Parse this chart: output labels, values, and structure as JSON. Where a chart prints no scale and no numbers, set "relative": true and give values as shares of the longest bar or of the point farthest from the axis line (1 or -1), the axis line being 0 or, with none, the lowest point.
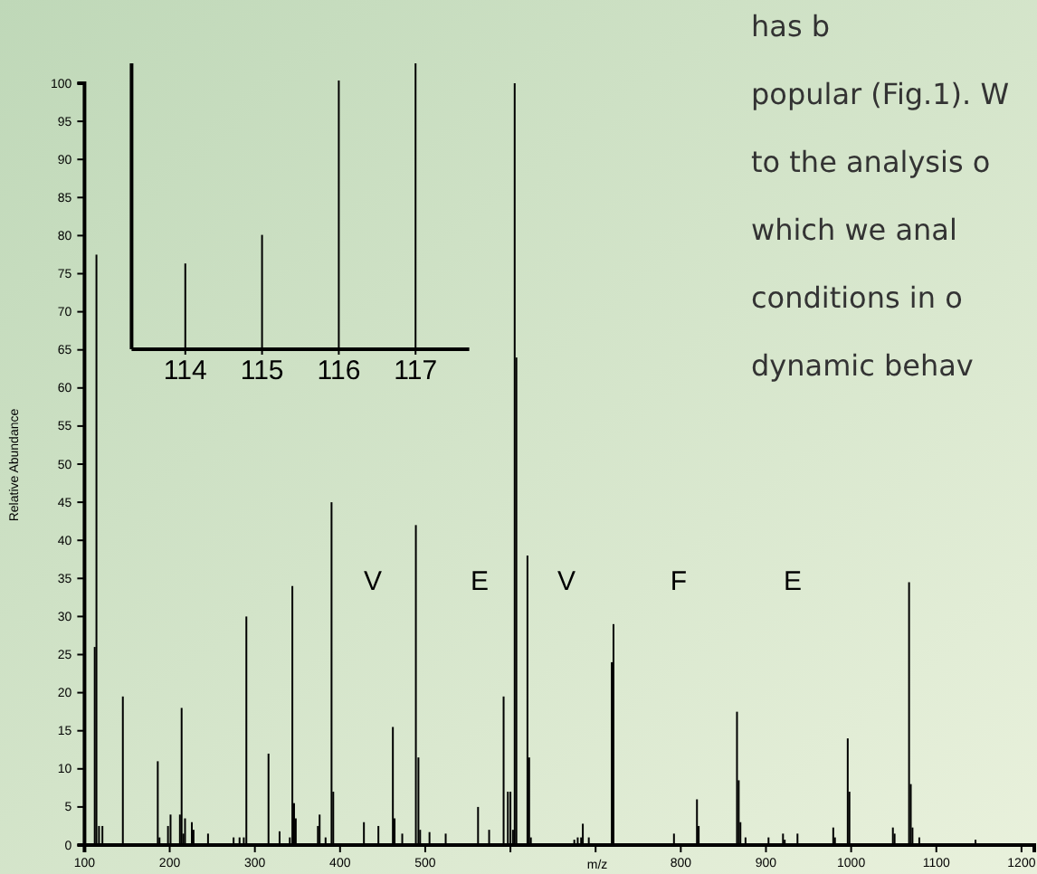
{
  "chart_data": [
    {
      "type": "bar",
      "xlabel": "m/z",
      "ylabel": "Relative Abundance",
      "color": "#000000",
      "x": [
        112,
        114,
        117,
        121,
        145,
        186,
        188,
        198,
        201,
        212,
        214,
        216,
        218,
        226,
        228,
        245,
        275,
        282,
        287,
        290,
        316,
        329,
        341,
        344,
        346,
        348,
        374,
        376,
        383,
        390,
        392,
        428,
        445,
        462,
        464,
        473,
        489,
        492,
        494,
        505,
        524,
        562,
        575,
        592,
        597,
        600,
        603,
        605,
        607,
        620,
        622,
        624,
        675,
        679,
        683,
        685,
        692,
        719,
        721,
        792,
        819,
        821,
        866,
        868,
        870,
        876,
        903,
        920,
        922,
        937,
        979,
        981,
        996,
        998,
        1049,
        1051,
        1068,
        1070,
        1072,
        1080,
        1146
      ],
      "values": [
        26,
        77.5,
        2.5,
        2.5,
        19.5,
        11,
        1,
        2.5,
        4,
        4,
        18,
        1.5,
        3.5,
        3,
        2,
        1.5,
        1,
        1,
        1,
        30,
        12,
        1.8,
        1,
        34,
        5.5,
        3.5,
        2.5,
        4,
        1,
        45,
        7,
        3,
        2.5,
        15.5,
        3.5,
        1.5,
        42,
        11.5,
        2,
        1.7,
        1.5,
        5,
        2,
        19.5,
        7,
        7,
        2,
        100,
        64,
        38,
        11.5,
        1,
        0.7,
        1,
        1,
        2.8,
        1,
        24,
        29,
        1.5,
        6,
        2.5,
        17.5,
        8.5,
        3,
        1,
        1,
        1.5,
        0.7,
        1.5,
        2.3,
        1,
        14,
        7,
        2.3,
        1.5,
        34.5,
        8,
        2.3,
        1,
        0.7
      ],
      "xlim": [
        100,
        1215
      ],
      "xticks": [
        100,
        200,
        300,
        400,
        500,
        {
          "value": 600,
          "label": null
        },
        {
          "value": 700,
          "label": null
        },
        800,
        900,
        1000,
        1100,
        1200
      ],
      "ylim": [
        0,
        100
      ],
      "yticks": [
        0,
        5,
        10,
        15,
        20,
        25,
        30,
        35,
        40,
        45,
        50,
        55,
        60,
        65,
        70,
        75,
        80,
        85,
        90,
        95,
        100
      ],
      "annotations": [
        "V",
        "E",
        "V",
        "F",
        "E"
      ]
    },
    {
      "type": "bar",
      "relative": true,
      "color": "#000000",
      "categories": [
        "114",
        "115",
        "116",
        "117"
      ],
      "values": [
        0.3,
        0.4,
        0.94,
        1
      ]
    },
    {
      "type": "other",
      "annotations": [
        "has b",
        "popular (Fig.1). W",
        "to the analysis o",
        "which we anal",
        "conditions in o",
        "dynamic behav"
      ]
    }
  ]
}
